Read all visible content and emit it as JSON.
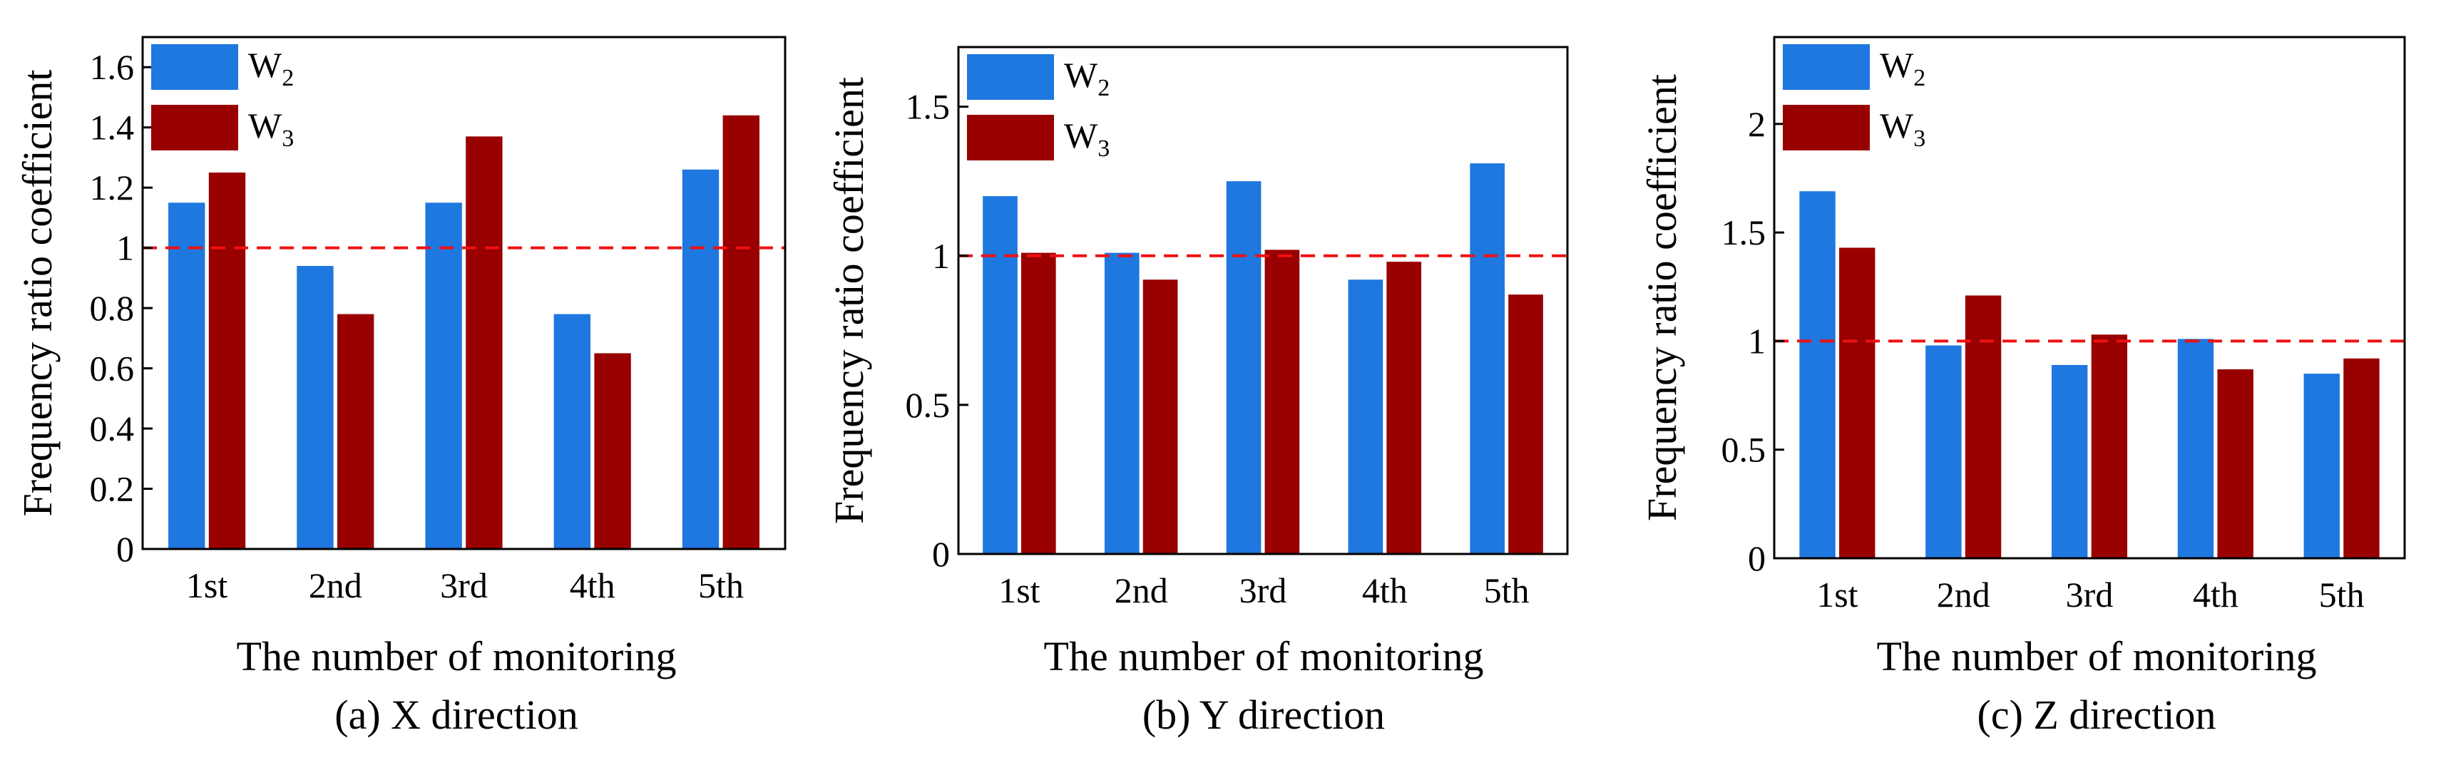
{
  "chart_data": [
    {
      "type": "bar",
      "categories": [
        "1st",
        "2nd",
        "3rd",
        "4th",
        "5th"
      ],
      "series": [
        {
          "name": "W",
          "subscript": "2",
          "color": "#1f77e0",
          "values": [
            1.15,
            0.94,
            1.15,
            0.78,
            1.26
          ]
        },
        {
          "name": "W",
          "subscript": "3",
          "color": "#990000",
          "values": [
            1.25,
            0.78,
            1.37,
            0.65,
            1.44
          ]
        }
      ],
      "ylim": [
        0,
        1.7
      ],
      "yticks": [
        0,
        0.2,
        0.4,
        0.6,
        0.8,
        1,
        1.2,
        1.4,
        1.6
      ],
      "ytick_labels": [
        "0",
        "0.2",
        "0.4",
        "0.6",
        "0.8",
        "1",
        "1.2",
        "1.4",
        "1.6"
      ],
      "reference_line": 1,
      "ylabel": "Frequency ratio coefficient",
      "xlabel": "The number of monitoring",
      "caption": "(a) X direction",
      "legend": "top-left"
    },
    {
      "type": "bar",
      "categories": [
        "1st",
        "2nd",
        "3rd",
        "4th",
        "5th"
      ],
      "series": [
        {
          "name": "W",
          "subscript": "2",
          "color": "#1f77e0",
          "values": [
            1.2,
            1.01,
            1.25,
            0.92,
            1.31
          ]
        },
        {
          "name": "W",
          "subscript": "3",
          "color": "#990000",
          "values": [
            1.01,
            0.92,
            1.02,
            0.98,
            0.87
          ]
        }
      ],
      "ylim": [
        0,
        1.7
      ],
      "yticks": [
        0,
        0.5,
        1,
        1.5
      ],
      "ytick_labels": [
        "0",
        "0.5",
        "1",
        "1.5"
      ],
      "reference_line": 1,
      "ylabel": "Frequency ratio coefficient",
      "xlabel": "The number of monitoring",
      "caption": "(b) Y direction",
      "legend": "top-left"
    },
    {
      "type": "bar",
      "categories": [
        "1st",
        "2nd",
        "3rd",
        "4th",
        "5th"
      ],
      "series": [
        {
          "name": "W",
          "subscript": "2",
          "color": "#1f77e0",
          "values": [
            1.69,
            0.98,
            0.89,
            1.01,
            0.85
          ]
        },
        {
          "name": "W",
          "subscript": "3",
          "color": "#990000",
          "values": [
            1.43,
            1.21,
            1.03,
            0.87,
            0.92
          ]
        }
      ],
      "ylim": [
        0,
        2.4
      ],
      "yticks": [
        0,
        0.5,
        1,
        1.5,
        2
      ],
      "ytick_labels": [
        "0",
        "0.5",
        "1",
        "1.5",
        "2"
      ],
      "reference_line": 1,
      "ylabel": "Frequency ratio coefficient",
      "xlabel": "The number of monitoring",
      "caption": "(c) Z direction",
      "legend": "top-left"
    }
  ]
}
